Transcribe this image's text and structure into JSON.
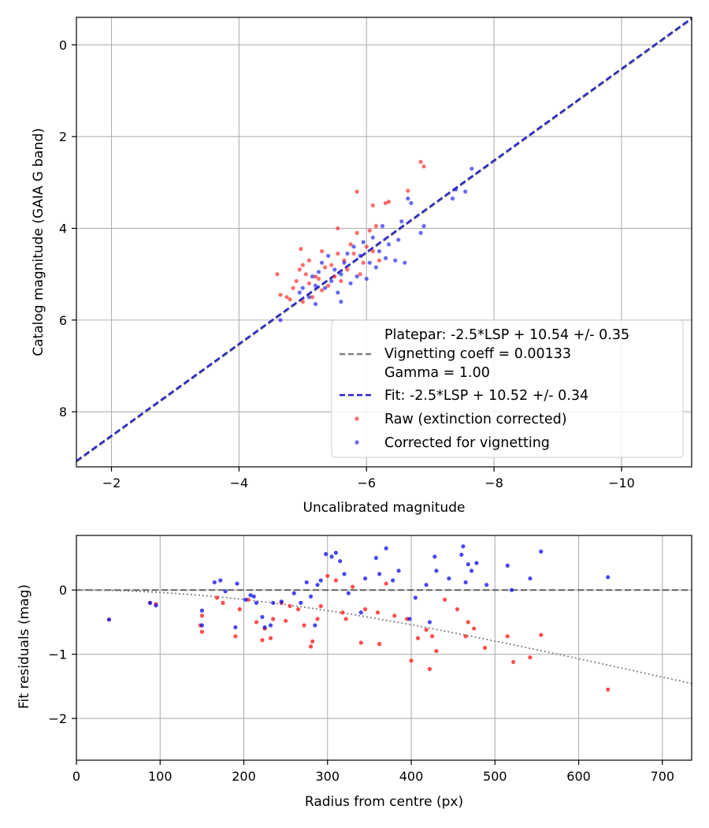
{
  "chart_data": [
    {
      "type": "scatter",
      "xlabel": "Uncalibrated magnitude",
      "ylabel": "Catalog magnitude (GAIA G band)",
      "xlim": [
        -1.45,
        -11.1
      ],
      "ylim": [
        9.2,
        -0.6
      ],
      "xticks": [
        -2,
        -4,
        -6,
        -8,
        -10
      ],
      "xtick_labels": [
        "−2",
        "−4",
        "−6",
        "−8",
        "−10"
      ],
      "yticks": [
        0,
        2,
        4,
        6,
        8
      ],
      "ytick_labels": [
        "0",
        "2",
        "4",
        "6",
        "8"
      ],
      "grid": true,
      "legend_position": "lower-right",
      "legend": [
        {
          "label": "Platepar: -2.5*LSP + 10.54 +/- 0.35",
          "style": "none"
        },
        {
          "label": "Vignetting coeff = 0.00133",
          "style": "dashed-gray"
        },
        {
          "label": "Gamma = 1.00",
          "style": "none"
        },
        {
          "label": "Fit: -2.5*LSP + 10.52 +/- 0.34",
          "style": "dashed-blue"
        },
        {
          "label": "Raw (extinction corrected)",
          "style": "red-dot"
        },
        {
          "label": "Corrected for vignetting",
          "style": "blue-dot"
        }
      ],
      "lines": [
        {
          "name": "Platepar",
          "slope": 1,
          "intercept": 10.54,
          "color": "#808080",
          "dash": true
        },
        {
          "name": "Fit",
          "slope": 1,
          "intercept": 10.52,
          "color": "#2222cc",
          "dash": true
        }
      ],
      "series": [
        {
          "name": "Raw (extinction corrected)",
          "color": "#ff2020",
          "points": [
            [
              -4.6,
              5.0
            ],
            [
              -4.65,
              5.45
            ],
            [
              -4.75,
              5.5
            ],
            [
              -4.8,
              5.55
            ],
            [
              -4.85,
              5.3
            ],
            [
              -4.9,
              5.15
            ],
            [
              -4.95,
              4.9
            ],
            [
              -4.97,
              4.45
            ],
            [
              -5.0,
              4.8
            ],
            [
              -5.05,
              5.0
            ],
            [
              -5.1,
              5.2
            ],
            [
              -5.1,
              4.7
            ],
            [
              -5.15,
              5.5
            ],
            [
              -5.2,
              5.05
            ],
            [
              -5.25,
              5.1
            ],
            [
              -5.3,
              4.5
            ],
            [
              -5.35,
              4.85
            ],
            [
              -5.4,
              5.25
            ],
            [
              -5.45,
              4.8
            ],
            [
              -5.5,
              5.05
            ],
            [
              -5.55,
              4.55
            ],
            [
              -5.55,
              4.0
            ],
            [
              -5.6,
              5.15
            ],
            [
              -5.65,
              4.7
            ],
            [
              -5.7,
              4.9
            ],
            [
              -5.75,
              4.35
            ],
            [
              -5.8,
              4.55
            ],
            [
              -5.85,
              4.1
            ],
            [
              -5.85,
              3.2
            ],
            [
              -5.9,
              5.0
            ],
            [
              -5.95,
              4.75
            ],
            [
              -6.0,
              4.4
            ],
            [
              -6.05,
              4.05
            ],
            [
              -6.1,
              4.5
            ],
            [
              -6.15,
              3.95
            ],
            [
              -6.2,
              4.7
            ],
            [
              -6.1,
              3.5
            ],
            [
              -6.3,
              3.45
            ],
            [
              -6.35,
              3.42
            ],
            [
              -6.65,
              3.18
            ],
            [
              -6.85,
              2.55
            ],
            [
              -6.9,
              2.65
            ],
            [
              -5.3,
              5.35
            ],
            [
              -5.0,
              5.6
            ]
          ]
        },
        {
          "name": "Corrected for vignetting",
          "color": "#1a1aee",
          "points": [
            [
              -4.65,
              6.0
            ],
            [
              -4.95,
              5.4
            ],
            [
              -5.0,
              5.3
            ],
            [
              -5.1,
              5.5
            ],
            [
              -5.15,
              5.05
            ],
            [
              -5.2,
              5.25
            ],
            [
              -5.25,
              4.95
            ],
            [
              -5.3,
              4.75
            ],
            [
              -5.35,
              5.3
            ],
            [
              -5.4,
              4.6
            ],
            [
              -5.45,
              5.15
            ],
            [
              -5.5,
              4.9
            ],
            [
              -5.55,
              5.4
            ],
            [
              -5.6,
              5.0
            ],
            [
              -5.65,
              4.75
            ],
            [
              -5.7,
              4.55
            ],
            [
              -5.75,
              5.2
            ],
            [
              -5.8,
              4.4
            ],
            [
              -5.85,
              5.05
            ],
            [
              -5.9,
              4.6
            ],
            [
              -5.95,
              4.3
            ],
            [
              -6.0,
              5.1
            ],
            [
              -6.05,
              4.75
            ],
            [
              -6.1,
              4.2
            ],
            [
              -6.15,
              4.85
            ],
            [
              -6.2,
              4.5
            ],
            [
              -6.25,
              3.95
            ],
            [
              -6.3,
              4.65
            ],
            [
              -6.35,
              4.35
            ],
            [
              -6.45,
              4.7
            ],
            [
              -6.5,
              4.25
            ],
            [
              -6.55,
              3.85
            ],
            [
              -6.6,
              4.75
            ],
            [
              -6.65,
              3.35
            ],
            [
              -6.7,
              3.45
            ],
            [
              -6.85,
              4.1
            ],
            [
              -6.9,
              3.95
            ],
            [
              -7.35,
              3.35
            ],
            [
              -7.4,
              3.15
            ],
            [
              -7.55,
              3.2
            ],
            [
              -7.65,
              2.7
            ],
            [
              -5.2,
              5.65
            ],
            [
              -5.6,
              5.6
            ]
          ]
        }
      ]
    },
    {
      "type": "scatter",
      "xlabel": "Radius from centre (px)",
      "ylabel": "Fit residuals (mag)",
      "xlim": [
        0,
        735
      ],
      "ylim": [
        -2.65,
        0.85
      ],
      "xticks": [
        0,
        100,
        200,
        300,
        400,
        500,
        600,
        700
      ],
      "xtick_labels": [
        "0",
        "100",
        "200",
        "300",
        "400",
        "500",
        "600",
        "700"
      ],
      "yticks": [
        0,
        -1,
        -2
      ],
      "ytick_labels": [
        "0",
        "−1",
        "−2"
      ],
      "grid": true,
      "reference_line": {
        "y": 0,
        "color": "#606060",
        "dash": true
      },
      "vignetting_curve": {
        "coeff": 0.00133,
        "color": "#808080",
        "dotted": true
      },
      "series": [
        {
          "name": "Raw (extinction corrected)",
          "color": "#ff2020",
          "points": [
            [
              39,
              -0.46
            ],
            [
              88,
              -0.2
            ],
            [
              95,
              -0.22
            ],
            [
              150,
              -0.65
            ],
            [
              150,
              -0.4
            ],
            [
              168,
              -0.12
            ],
            [
              175,
              -0.2
            ],
            [
              190,
              -0.72
            ],
            [
              195,
              -0.3
            ],
            [
              205,
              -0.15
            ],
            [
              215,
              -0.5
            ],
            [
              222,
              -0.78
            ],
            [
              225,
              -0.6
            ],
            [
              232,
              -0.75
            ],
            [
              235,
              -0.45
            ],
            [
              245,
              -0.2
            ],
            [
              255,
              -0.25
            ],
            [
              265,
              -0.3
            ],
            [
              272,
              -0.55
            ],
            [
              280,
              -0.88
            ],
            [
              282,
              -0.8
            ],
            [
              288,
              -0.45
            ],
            [
              292,
              -0.25
            ],
            [
              300,
              0.22
            ],
            [
              310,
              0.15
            ],
            [
              318,
              -0.35
            ],
            [
              322,
              -0.45
            ],
            [
              330,
              0.05
            ],
            [
              340,
              -0.82
            ],
            [
              345,
              -0.3
            ],
            [
              360,
              -0.35
            ],
            [
              362,
              -0.84
            ],
            [
              370,
              0.1
            ],
            [
              380,
              -0.4
            ],
            [
              395,
              -0.45
            ],
            [
              400,
              -1.1
            ],
            [
              408,
              -0.75
            ],
            [
              418,
              -0.62
            ],
            [
              422,
              -1.23
            ],
            [
              425,
              -0.72
            ],
            [
              430,
              -0.95
            ],
            [
              440,
              -0.15
            ],
            [
              455,
              -0.3
            ],
            [
              465,
              -0.72
            ],
            [
              468,
              -0.5
            ],
            [
              475,
              -0.6
            ],
            [
              488,
              -0.9
            ],
            [
              515,
              -0.72
            ],
            [
              522,
              -1.12
            ],
            [
              542,
              -1.05
            ],
            [
              555,
              -0.7
            ],
            [
              635,
              -1.55
            ],
            [
              148,
              -0.55
            ],
            [
              250,
              -0.48
            ]
          ]
        },
        {
          "name": "Corrected for vignetting",
          "color": "#1a1aee",
          "points": [
            [
              39,
              -0.46
            ],
            [
              88,
              -0.2
            ],
            [
              95,
              -0.24
            ],
            [
              150,
              -0.55
            ],
            [
              150,
              -0.32
            ],
            [
              165,
              0.12
            ],
            [
              172,
              0.15
            ],
            [
              178,
              -0.02
            ],
            [
              190,
              -0.58
            ],
            [
              192,
              0.1
            ],
            [
              202,
              -0.15
            ],
            [
              208,
              -0.08
            ],
            [
              212,
              -0.1
            ],
            [
              215,
              -0.2
            ],
            [
              222,
              -0.42
            ],
            [
              225,
              -0.58
            ],
            [
              232,
              -0.55
            ],
            [
              235,
              -0.2
            ],
            [
              245,
              -0.18
            ],
            [
              260,
              -0.05
            ],
            [
              268,
              -0.2
            ],
            [
              275,
              0.12
            ],
            [
              280,
              -0.1
            ],
            [
              285,
              -0.55
            ],
            [
              288,
              0.08
            ],
            [
              292,
              0.15
            ],
            [
              298,
              0.56
            ],
            [
              305,
              0.52
            ],
            [
              310,
              0.58
            ],
            [
              315,
              0.45
            ],
            [
              320,
              0.25
            ],
            [
              325,
              -0.05
            ],
            [
              340,
              -0.35
            ],
            [
              345,
              0.18
            ],
            [
              358,
              0.5
            ],
            [
              362,
              0.25
            ],
            [
              370,
              0.65
            ],
            [
              378,
              0.15
            ],
            [
              385,
              0.3
            ],
            [
              398,
              -0.45
            ],
            [
              405,
              -0.12
            ],
            [
              418,
              0.08
            ],
            [
              422,
              -0.5
            ],
            [
              428,
              0.52
            ],
            [
              430,
              0.3
            ],
            [
              445,
              0.18
            ],
            [
              460,
              0.55
            ],
            [
              462,
              0.68
            ],
            [
              465,
              0.12
            ],
            [
              468,
              0.4
            ],
            [
              472,
              0.3
            ],
            [
              478,
              0.42
            ],
            [
              490,
              0.08
            ],
            [
              515,
              0.38
            ],
            [
              520,
              0.0
            ],
            [
              542,
              0.18
            ],
            [
              555,
              0.6
            ],
            [
              635,
              0.2
            ]
          ]
        }
      ]
    }
  ]
}
